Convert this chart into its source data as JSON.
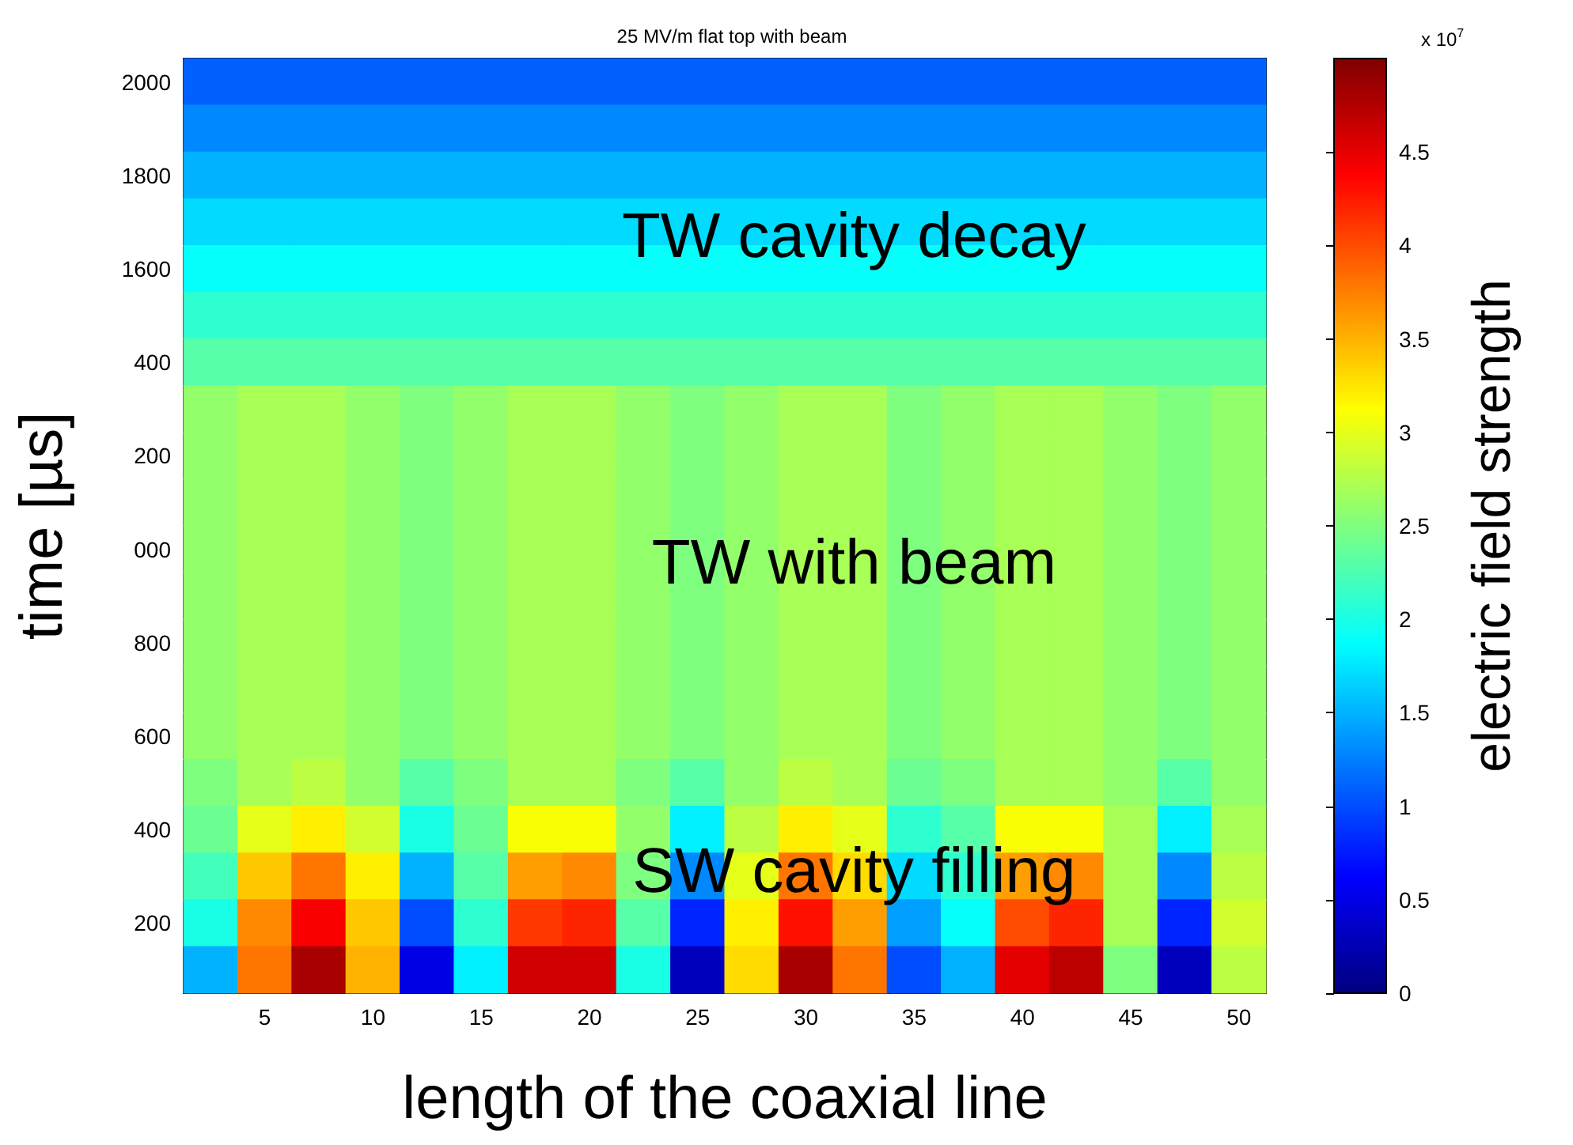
{
  "chart_data": {
    "type": "heatmap",
    "title": "25 MV/m flat top with beam",
    "xlabel": "length of the coaxial line",
    "ylabel": "time [µs]",
    "clabel": "electric field strength",
    "annotations": [
      "TW cavity decay",
      "TW with beam",
      "SW cavity filling",
      "x 10$^{7}$"
    ],
    "categories": [
      null,
      "5",
      null,
      "10",
      null,
      "15",
      null,
      "20",
      null,
      "25",
      null,
      "30",
      null,
      "35",
      null,
      "40",
      null,
      "45",
      null,
      "50"
    ],
    "y_categories": [
      "2000",
      null,
      "1800",
      null,
      "1600",
      null,
      "400",
      null,
      "200",
      null,
      "000",
      null,
      "800",
      null,
      "600",
      null,
      "400",
      null,
      "200",
      null
    ],
    "cells": [
      [
        1.1,
        1.1,
        1.1,
        1.1,
        1.1,
        1.1,
        1.1,
        1.1,
        1.1,
        1.1,
        1.1,
        1.1,
        1.1,
        1.1,
        1.1,
        1.1,
        1.1,
        1.1,
        1.1,
        1.1
      ],
      [
        1.3,
        1.3,
        1.3,
        1.3,
        1.3,
        1.3,
        1.3,
        1.3,
        1.3,
        1.3,
        1.3,
        1.3,
        1.3,
        1.3,
        1.3,
        1.3,
        1.3,
        1.3,
        1.3,
        1.3
      ],
      [
        1.5,
        1.5,
        1.5,
        1.5,
        1.5,
        1.5,
        1.5,
        1.5,
        1.5,
        1.5,
        1.5,
        1.5,
        1.5,
        1.5,
        1.5,
        1.5,
        1.5,
        1.5,
        1.5,
        1.5
      ],
      [
        1.7,
        1.7,
        1.7,
        1.7,
        1.7,
        1.7,
        1.7,
        1.7,
        1.7,
        1.7,
        1.7,
        1.7,
        1.7,
        1.7,
        1.7,
        1.7,
        1.7,
        1.7,
        1.7,
        1.7
      ],
      [
        1.9,
        1.9,
        1.9,
        1.9,
        1.9,
        1.9,
        1.9,
        1.9,
        1.9,
        1.9,
        1.9,
        1.9,
        1.9,
        1.9,
        1.9,
        1.9,
        1.9,
        1.9,
        1.9,
        1.9
      ],
      [
        2.1,
        2.1,
        2.1,
        2.1,
        2.1,
        2.1,
        2.1,
        2.1,
        2.1,
        2.1,
        2.1,
        2.1,
        2.1,
        2.1,
        2.1,
        2.1,
        2.1,
        2.1,
        2.1,
        2.1
      ],
      [
        2.3,
        2.3,
        2.3,
        2.3,
        2.3,
        2.3,
        2.3,
        2.3,
        2.3,
        2.3,
        2.3,
        2.3,
        2.3,
        2.3,
        2.3,
        2.3,
        2.3,
        2.3,
        2.3,
        2.3
      ],
      [
        2.6,
        2.7,
        2.7,
        2.6,
        2.5,
        2.6,
        2.7,
        2.7,
        2.6,
        2.5,
        2.6,
        2.7,
        2.7,
        2.5,
        2.6,
        2.7,
        2.7,
        2.6,
        2.5,
        2.6
      ],
      [
        2.6,
        2.7,
        2.7,
        2.6,
        2.5,
        2.6,
        2.7,
        2.7,
        2.6,
        2.5,
        2.6,
        2.7,
        2.7,
        2.5,
        2.6,
        2.7,
        2.7,
        2.6,
        2.5,
        2.6
      ],
      [
        2.6,
        2.7,
        2.7,
        2.6,
        2.5,
        2.6,
        2.7,
        2.7,
        2.6,
        2.5,
        2.6,
        2.7,
        2.7,
        2.5,
        2.6,
        2.7,
        2.7,
        2.6,
        2.5,
        2.6
      ],
      [
        2.6,
        2.7,
        2.7,
        2.6,
        2.5,
        2.6,
        2.7,
        2.7,
        2.6,
        2.5,
        2.6,
        2.7,
        2.7,
        2.5,
        2.6,
        2.7,
        2.7,
        2.6,
        2.5,
        2.6
      ],
      [
        2.6,
        2.7,
        2.7,
        2.6,
        2.5,
        2.6,
        2.7,
        2.7,
        2.6,
        2.5,
        2.6,
        2.7,
        2.7,
        2.5,
        2.6,
        2.7,
        2.7,
        2.6,
        2.5,
        2.6
      ],
      [
        2.6,
        2.7,
        2.7,
        2.6,
        2.5,
        2.6,
        2.7,
        2.7,
        2.6,
        2.5,
        2.6,
        2.7,
        2.7,
        2.5,
        2.6,
        2.7,
        2.7,
        2.6,
        2.5,
        2.6
      ],
      [
        2.6,
        2.7,
        2.7,
        2.6,
        2.5,
        2.6,
        2.7,
        2.7,
        2.6,
        2.5,
        2.6,
        2.7,
        2.7,
        2.5,
        2.6,
        2.7,
        2.7,
        2.6,
        2.5,
        2.6
      ],
      [
        2.6,
        2.7,
        2.7,
        2.6,
        2.5,
        2.6,
        2.7,
        2.7,
        2.6,
        2.5,
        2.6,
        2.7,
        2.7,
        2.5,
        2.6,
        2.7,
        2.7,
        2.6,
        2.5,
        2.6
      ],
      [
        2.5,
        2.7,
        2.8,
        2.6,
        2.3,
        2.5,
        2.7,
        2.7,
        2.5,
        2.3,
        2.6,
        2.8,
        2.7,
        2.4,
        2.5,
        2.7,
        2.7,
        2.6,
        2.3,
        2.6
      ],
      [
        2.4,
        3.0,
        3.2,
        2.9,
        2.0,
        2.4,
        3.1,
        3.1,
        2.6,
        1.8,
        2.8,
        3.2,
        3.0,
        2.1,
        2.3,
        3.1,
        3.1,
        2.7,
        1.8,
        2.7
      ],
      [
        2.2,
        3.4,
        3.8,
        3.2,
        1.5,
        2.3,
        3.6,
        3.7,
        2.5,
        1.3,
        3.0,
        3.8,
        3.3,
        1.7,
        2.1,
        3.6,
        3.7,
        2.7,
        1.3,
        2.8
      ],
      [
        2.0,
        3.7,
        4.4,
        3.4,
        1.0,
        2.1,
        4.1,
        4.2,
        2.3,
        0.8,
        3.2,
        4.3,
        3.6,
        1.4,
        1.9,
        4.0,
        4.2,
        2.7,
        0.8,
        2.9
      ],
      [
        1.5,
        3.8,
        4.8,
        3.5,
        0.5,
        1.8,
        4.6,
        4.6,
        2.0,
        0.3,
        3.3,
        4.8,
        3.8,
        1.0,
        1.5,
        4.5,
        4.7,
        2.5,
        0.3,
        2.8
      ]
    ],
    "clim": [
      0,
      5
    ],
    "cticks": [
      0,
      0.5,
      1,
      1.5,
      2,
      2.5,
      3,
      3.5,
      4,
      4.5
    ],
    "grid": false
  }
}
